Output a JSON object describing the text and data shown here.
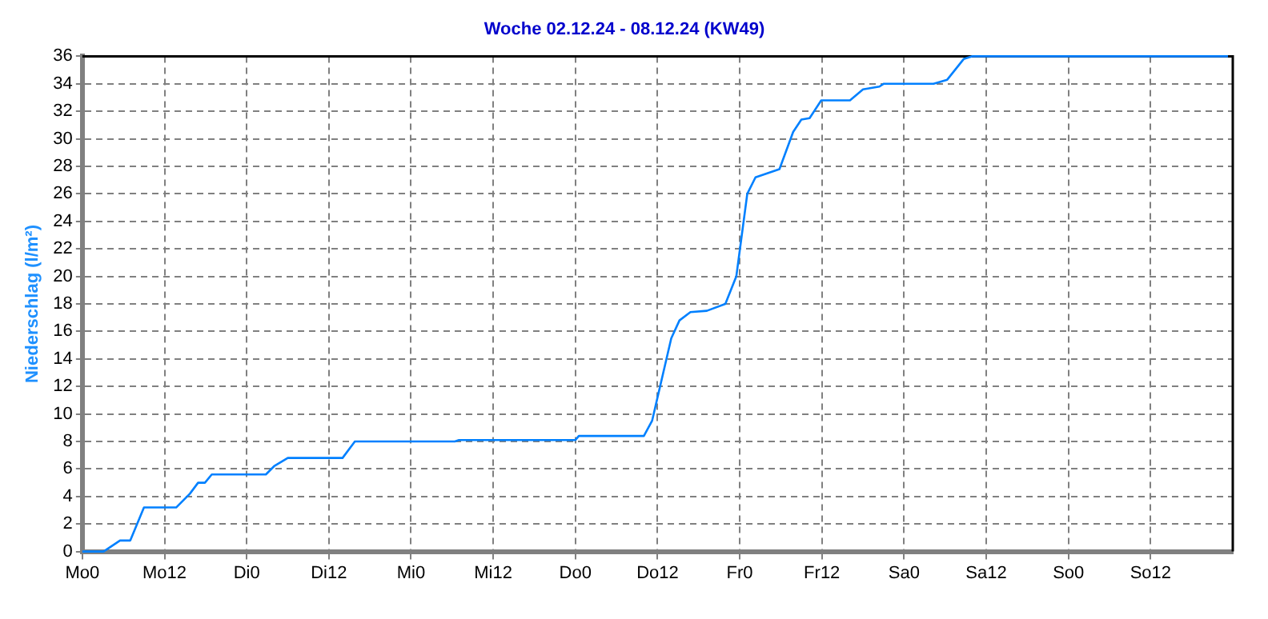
{
  "chart_data": {
    "type": "line",
    "title": "Woche 02.12.24 - 08.12.24 (KW49)",
    "ylabel": "Niederschlag (l/m²)",
    "xlim": [
      "--12-02T00:00",
      "--12-09T00:00"
    ],
    "ylim": [
      0,
      36
    ],
    "xticks": [
      {
        "value": "--12-02T00:00",
        "label": "Mo0"
      },
      {
        "value": "--12-02T12:00",
        "label": "Mo12"
      },
      {
        "value": "--12-03T00:00",
        "label": "Di0"
      },
      {
        "value": "--12-03T12:00",
        "label": "Di12"
      },
      {
        "value": "--12-04T00:00",
        "label": "Mi0"
      },
      {
        "value": "--12-04T12:00",
        "label": "Mi12"
      },
      {
        "value": "--12-05T00:00",
        "label": "Do0"
      },
      {
        "value": "--12-05T12:00",
        "label": "Do12"
      },
      {
        "value": "--12-06T00:00",
        "label": "Fr0"
      },
      {
        "value": "--12-06T12:00",
        "label": "Fr12"
      },
      {
        "value": "--12-07T00:00",
        "label": "Sa0"
      },
      {
        "value": "--12-07T12:00",
        "label": "Sa12"
      },
      {
        "value": "--12-08T00:00",
        "label": "So0"
      },
      {
        "value": "--12-08T12:00",
        "label": "So12"
      }
    ],
    "yticks": [
      0,
      2,
      4,
      6,
      8,
      10,
      12,
      14,
      16,
      18,
      20,
      22,
      24,
      26,
      28,
      30,
      32,
      34,
      36
    ],
    "grid": true,
    "marker": "none",
    "line_style": "solid",
    "x": [
      "--12-02T00:00",
      "--12-02T03:06",
      "--12-02T05:30",
      "--12-02T07:00",
      "--12-02T09:00",
      "--12-02T13:42",
      "--12-02T15:42",
      "--12-02T16:54",
      "--12-02T17:54",
      "--12-02T18:54",
      "--12-03T02:48",
      "--12-03T04:00",
      "--12-03T06:00",
      "--12-03T14:00",
      "--12-03T15:48",
      "--12-04T06:24",
      "--12-04T07:00",
      "--12-05T00:00",
      "--12-05T00:30",
      "--12-05T10:00",
      "--12-05T11:12",
      "--12-05T14:00",
      "--12-05T15:12",
      "--12-05T16:48",
      "--12-05T19:12",
      "--12-05T21:54",
      "--12-05T23:30",
      "--12-06T00:18",
      "--12-06T01:06",
      "--12-06T02:18",
      "--12-06T05:48",
      "--12-06T07:48",
      "--12-06T09:00",
      "--12-06T10:12",
      "--12-06T11:54",
      "--12-06T16:06",
      "--12-06T18:00",
      "--12-06T20:24",
      "--12-06T21:00",
      "--12-07T04:18",
      "--12-07T06:18",
      "--12-07T08:42",
      "--12-07T09:54",
      "--12-08T09:12",
      "--12-08T10:00",
      "--12-08T23:18"
    ],
    "series": [
      {
        "color": "#0080ff",
        "values": [
          0,
          0,
          0.8,
          0.8,
          3.2,
          3.2,
          4.2,
          5.0,
          5.0,
          5.6,
          5.6,
          6.2,
          6.8,
          6.8,
          8.0,
          8.0,
          8.1,
          8.1,
          8.4,
          8.4,
          9.5,
          15.5,
          16.8,
          17.4,
          17.5,
          18.0,
          20,
          23,
          26,
          27.2,
          27.8,
          30.5,
          31.4,
          31.5,
          32.8,
          32.8,
          33.6,
          33.8,
          34.0,
          34.0,
          34.3,
          35.8,
          36.0,
          36.0,
          36.0,
          36.0
        ]
      }
    ]
  }
}
